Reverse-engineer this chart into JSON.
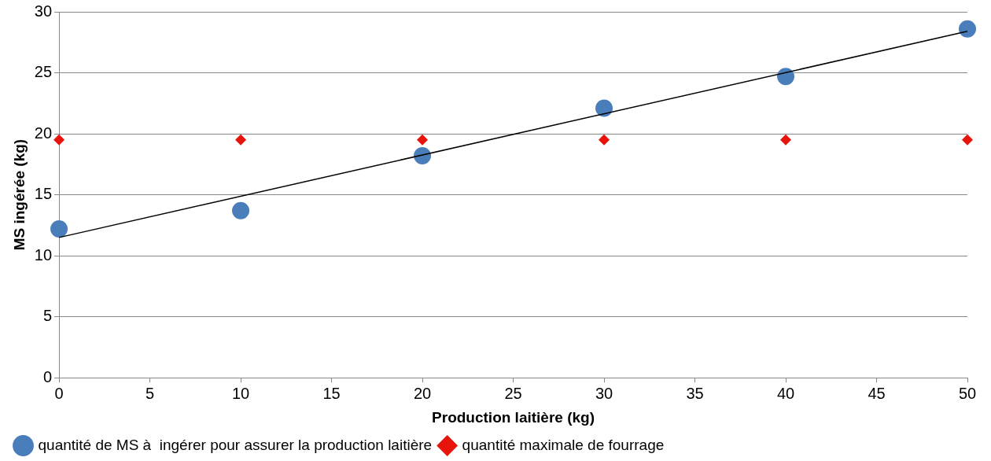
{
  "chart_data": {
    "type": "scatter",
    "xlabel": "Production laitière (kg)",
    "ylabel": "MS ingérée (kg)",
    "x": [
      0,
      10,
      20,
      30,
      40,
      50
    ],
    "series": [
      {
        "name": "quantité de MS à  ingérer pour assurer la production laitière",
        "color": "#4a7ebb",
        "marker": "circle",
        "values": [
          12.2,
          13.7,
          18.2,
          22.1,
          24.7,
          28.6
        ]
      },
      {
        "name": "quantité maximale de fourrage",
        "color": "#e8140c",
        "marker": "diamond",
        "values": [
          19.5,
          19.5,
          19.5,
          19.5,
          19.5,
          19.5
        ]
      },
      {
        "type": "line",
        "color": "#000000",
        "marker": "none",
        "x": [
          0,
          50
        ],
        "values": [
          11.5,
          28.4
        ]
      }
    ],
    "xlim": [
      0,
      50
    ],
    "xticks": [
      0,
      5,
      10,
      15,
      20,
      25,
      30,
      35,
      40,
      45,
      50
    ],
    "ylim": [
      0,
      30
    ],
    "yticks": [
      0,
      5,
      10,
      15,
      20,
      25,
      30
    ],
    "grid": "y",
    "legend": "bottom"
  }
}
